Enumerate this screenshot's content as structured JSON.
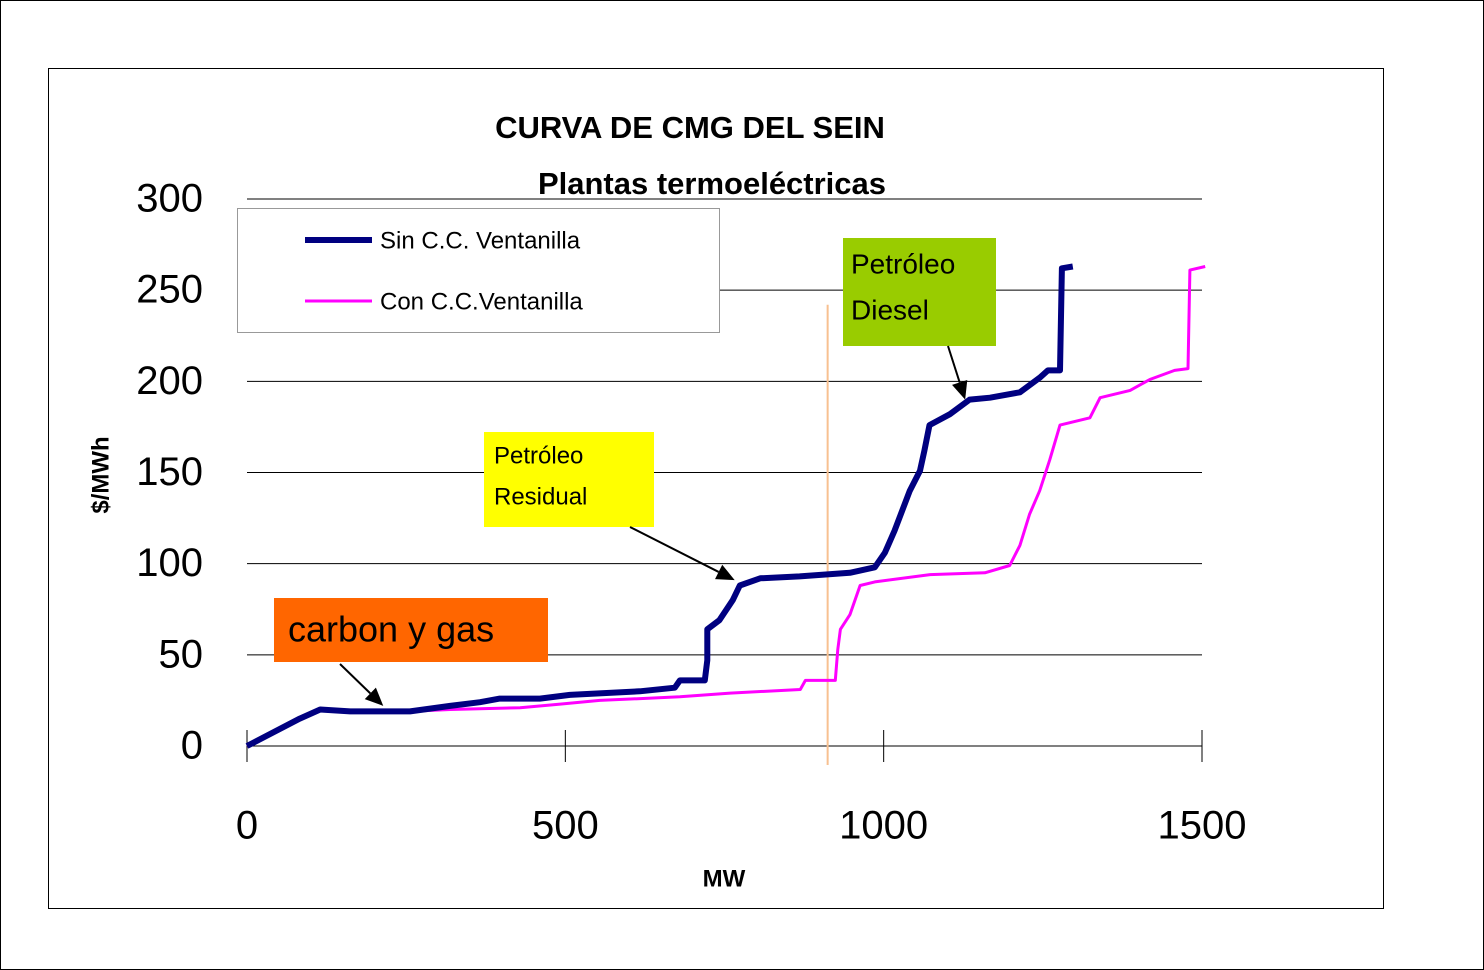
{
  "chart_data": {
    "type": "line",
    "title": "CURVA DE CMG DEL SEIN",
    "subtitle": "Plantas termoeléctricas",
    "x_label": "MW",
    "y_label": "$/MWh",
    "xlim": [
      0,
      1500
    ],
    "ylim": [
      0,
      300
    ],
    "xticks": [
      0,
      500,
      1000,
      1500
    ],
    "yticks": [
      0,
      50,
      100,
      150,
      200,
      250,
      300
    ],
    "grid": true,
    "legend": "upper left",
    "series": [
      {
        "name": "Sin C.C. Ventanilla",
        "color": "#000080",
        "x": [
          0,
          83,
          115,
          162,
          256,
          319,
          366,
          397,
          460,
          507,
          617,
          672,
          680,
          719,
          723,
          723,
          742,
          763,
          774,
          806,
          868,
          947,
          986,
          1002,
          1017,
          1041,
          1057,
          1064,
          1072,
          1104,
          1135,
          1167,
          1214,
          1245,
          1258,
          1277,
          1280,
          1297
        ],
        "values": [
          0,
          15,
          20,
          19,
          19,
          22,
          24,
          26,
          26,
          28,
          30,
          32,
          36,
          36,
          47,
          64,
          69,
          80,
          88,
          92,
          93,
          95,
          98,
          106,
          118,
          140,
          151,
          162,
          176,
          182,
          190,
          191,
          194,
          202,
          206,
          206,
          262,
          263
        ]
      },
      {
        "name": "Con C.C.Ventanilla",
        "color": "#ff00ff",
        "x": [
          0,
          83,
          115,
          162,
          256,
          319,
          429,
          492,
          554,
          680,
          759,
          869,
          877,
          924,
          928,
          932,
          947,
          963,
          986,
          1073,
          1159,
          1198,
          1214,
          1229,
          1245,
          1261,
          1277,
          1324,
          1340,
          1387,
          1418,
          1457,
          1478,
          1481,
          1505
        ],
        "values": [
          0,
          15,
          20,
          19,
          19,
          20,
          21,
          23,
          25,
          27,
          29,
          31,
          36,
          36,
          53,
          64,
          72,
          88,
          90,
          94,
          95,
          99,
          110,
          127,
          140,
          157,
          176,
          180,
          191,
          195,
          201,
          206,
          207,
          261,
          263
        ]
      }
    ],
    "reference_line": {
      "x": 912,
      "top": 242,
      "color": "#f8c090"
    },
    "annotations": [
      {
        "text": [
          "carbon y gas"
        ],
        "color": "#ff6600",
        "x": 214,
        "y": 22
      },
      {
        "text": [
          "Petróleo",
          "Residual"
        ],
        "color": "#ffff00",
        "x": 766,
        "y": 91
      },
      {
        "text": [
          "Petróleo",
          "Diesel"
        ],
        "color": "#99cc00",
        "x": 1128,
        "y": 190
      }
    ]
  }
}
